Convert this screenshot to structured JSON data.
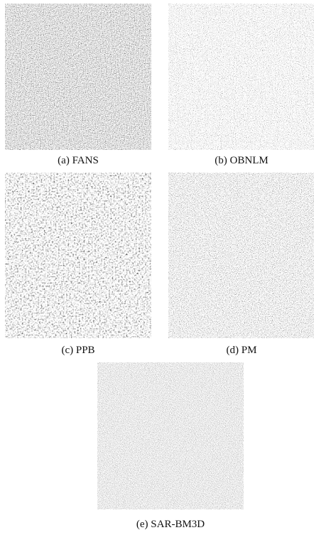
{
  "figure": {
    "panels": [
      {
        "caption": "(a) FANS"
      },
      {
        "caption": "(b) OBNLM"
      },
      {
        "caption": "(c) PPB"
      },
      {
        "caption": "(d) PM"
      },
      {
        "caption": "(e) SAR-BM3D"
      }
    ]
  }
}
